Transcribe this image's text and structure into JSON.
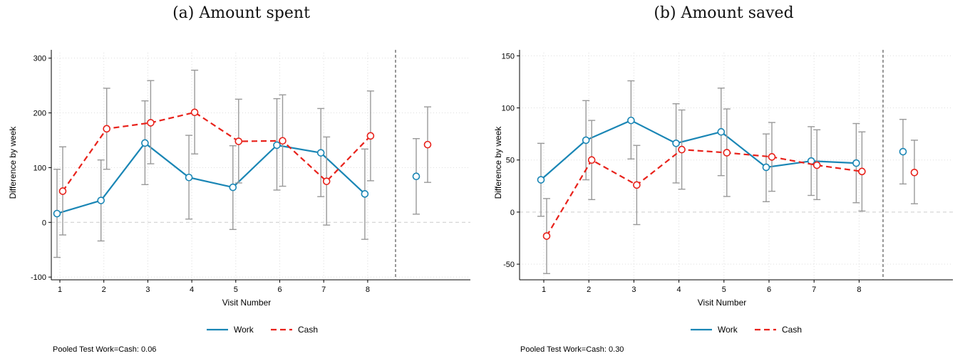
{
  "colors": {
    "work": "#1a86b5",
    "cash": "#e8221b",
    "ci": "#999999",
    "grid": "#dddddd",
    "zero": "#cccccc"
  },
  "chart_data": [
    {
      "id": "a",
      "type": "line",
      "title": "(a) Amount spent",
      "xlabel": "Visit Number",
      "ylabel": "Difference by week",
      "categories": [
        "1",
        "2",
        "3",
        "4",
        "5",
        "6",
        "7",
        "8"
      ],
      "yticks": [
        -100,
        0,
        100,
        200,
        300
      ],
      "ylim": [
        -105,
        310
      ],
      "grid": true,
      "legend_position": "bottom-center",
      "series": [
        {
          "name": "Work",
          "style": "solid",
          "values": [
            16,
            40,
            145,
            82,
            64,
            141,
            127,
            52
          ],
          "ci_low": [
            -64,
            -34,
            69,
            6,
            -13,
            59,
            47,
            -31
          ],
          "ci_high": [
            97,
            114,
            222,
            159,
            140,
            226,
            208,
            134
          ],
          "pooled": 84,
          "pooled_low": 15,
          "pooled_high": 153
        },
        {
          "name": "Cash",
          "style": "dashed",
          "values": [
            57,
            171,
            182,
            201,
            148,
            149,
            75,
            158
          ],
          "ci_low": [
            -23,
            97,
            107,
            125,
            72,
            66,
            -5,
            76
          ],
          "ci_high": [
            138,
            245,
            259,
            278,
            225,
            233,
            156,
            240
          ],
          "pooled": 142,
          "pooled_low": 73,
          "pooled_high": 211
        }
      ],
      "footnote": "Pooled Test Work=Cash: 0.06"
    },
    {
      "id": "b",
      "type": "line",
      "title": "(b) Amount saved",
      "xlabel": "Visit Number",
      "ylabel": "Difference by week",
      "categories": [
        "1",
        "2",
        "3",
        "4",
        "5",
        "6",
        "7",
        "8"
      ],
      "yticks": [
        -50,
        0,
        50,
        100,
        150
      ],
      "ylim": [
        -65,
        153
      ],
      "grid": true,
      "legend_position": "bottom-center",
      "series": [
        {
          "name": "Work",
          "style": "solid",
          "values": [
            31,
            69,
            88,
            66,
            77,
            43,
            49,
            47
          ],
          "ci_low": [
            -4,
            31,
            51,
            28,
            35,
            10,
            16,
            9
          ],
          "ci_high": [
            66,
            107,
            126,
            104,
            119,
            75,
            82,
            85
          ],
          "pooled": 58,
          "pooled_low": 27,
          "pooled_high": 89
        },
        {
          "name": "Cash",
          "style": "dashed",
          "values": [
            -23,
            50,
            26,
            60,
            57,
            53,
            45,
            39
          ],
          "ci_low": [
            -59,
            12,
            -12,
            22,
            15,
            20,
            12,
            1
          ],
          "ci_high": [
            13,
            88,
            64,
            98,
            99,
            86,
            79,
            77
          ],
          "pooled": 38,
          "pooled_low": 8,
          "pooled_high": 69
        }
      ],
      "footnote": "Pooled Test Work=Cash: 0.30"
    }
  ]
}
